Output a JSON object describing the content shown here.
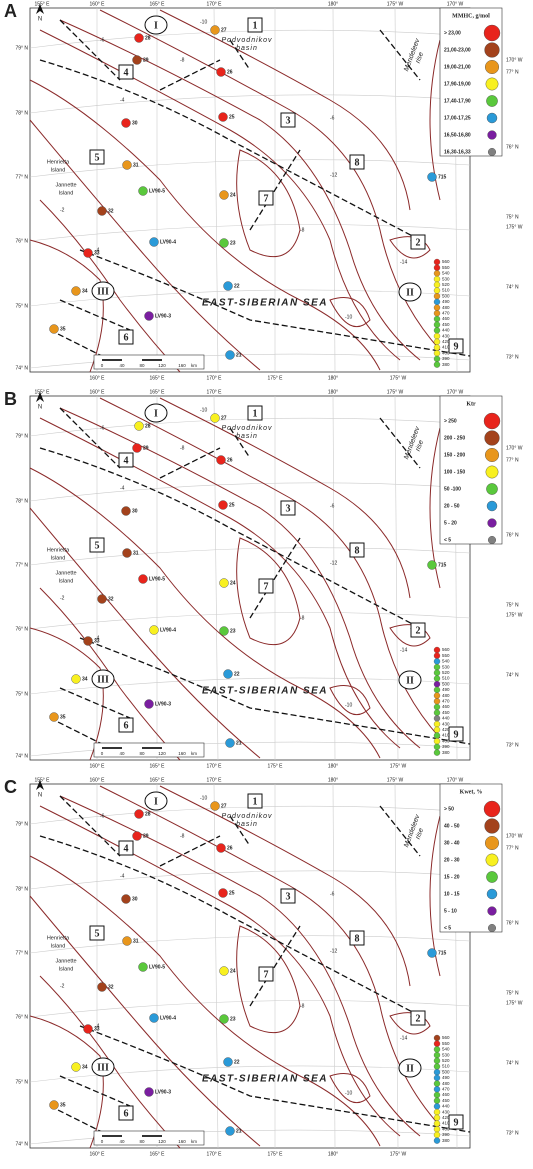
{
  "map": {
    "lat_left": [
      "79° N",
      "78° N",
      "77° N",
      "76° N",
      "75° N",
      "74° N"
    ],
    "lon_top": [
      "155° E",
      "160° E",
      "165° E",
      "170° E",
      "180°",
      "175° W",
      "170° W"
    ],
    "lon_bottom": [
      "160° E",
      "165° E",
      "170° E",
      "175° E",
      "180°",
      "175° W"
    ],
    "right": [
      "170° W",
      "77° N",
      "76° N",
      "75° N",
      "175° W",
      "74° N",
      "73° N"
    ],
    "zones": [
      "1",
      "2",
      "3",
      "4",
      "5",
      "6",
      "7",
      "8",
      "9"
    ],
    "roman": [
      "I",
      "II",
      "III"
    ],
    "basin": [
      "Podvodnikov",
      "basin"
    ],
    "rise": [
      "Mendeleev",
      "rise"
    ],
    "henrietta": [
      "Henrietta",
      "Island"
    ],
    "jannette": [
      "Jannette",
      "Island"
    ],
    "sea": "EAST-SIBERIAN SEA",
    "north": "N",
    "scale": [
      "0",
      "40",
      "80",
      "120",
      "160",
      "km"
    ],
    "contour_labels": [
      "-10",
      "-8",
      "-6",
      "-4",
      "-2",
      "-12",
      "-14",
      "-16",
      "-10",
      "-8",
      "-6",
      "-4"
    ],
    "stations": [
      "28",
      "27",
      "29",
      "26",
      "30",
      "25",
      "31",
      "LV90-5",
      "24",
      "32",
      "LV90-4",
      "23",
      "33",
      "34",
      "22",
      "LV90-3",
      "35",
      "21",
      "715"
    ],
    "depths": [
      560,
      550,
      540,
      530,
      520,
      510,
      500,
      490,
      480,
      470,
      460,
      450,
      440,
      430,
      420,
      410,
      400,
      390,
      380
    ]
  },
  "panels": [
    {
      "letter": "A",
      "legend_title": "MMHC, g/mol",
      "legend": [
        {
          "label": "> 23,00",
          "color": "#e8241c"
        },
        {
          "label": "21,00-23,00",
          "color": "#a3421c"
        },
        {
          "label": "19,00-21,00",
          "color": "#e8961c"
        },
        {
          "label": "17,90-19,00",
          "color": "#f8f020"
        },
        {
          "label": "17,40-17,90",
          "color": "#5ac83c"
        },
        {
          "label": "17,00-17,25",
          "color": "#2a9ad8"
        },
        {
          "label": "16,50-16,80",
          "color": "#7a1ea0"
        },
        {
          "label": "16,30-16,33",
          "color": "#808080"
        }
      ],
      "station_classes": [
        0,
        2,
        1,
        0,
        0,
        0,
        2,
        4,
        2,
        1,
        5,
        4,
        0,
        2,
        5,
        6,
        2,
        5,
        5
      ],
      "depth_classes": [
        0,
        0,
        2,
        3,
        3,
        3,
        2,
        5,
        2,
        2,
        4,
        4,
        4,
        3,
        3,
        3,
        3,
        4,
        4
      ]
    },
    {
      "letter": "B",
      "legend_title": "Ktr",
      "legend": [
        {
          "label": "> 250",
          "color": "#e8241c"
        },
        {
          "label": "200 - 250",
          "color": "#a3421c"
        },
        {
          "label": "150 - 200",
          "color": "#e8961c"
        },
        {
          "label": "100 - 150",
          "color": "#f8f020"
        },
        {
          "label": "50 -100",
          "color": "#5ac83c"
        },
        {
          "label": "20 - 50",
          "color": "#2a9ad8"
        },
        {
          "label": "5 - 20",
          "color": "#7a1ea0"
        },
        {
          "label": "< 5",
          "color": "#808080"
        }
      ],
      "station_classes": [
        3,
        3,
        0,
        0,
        1,
        0,
        1,
        0,
        3,
        1,
        3,
        4,
        1,
        3,
        5,
        6,
        2,
        5,
        4
      ],
      "depth_classes": [
        0,
        0,
        5,
        4,
        4,
        4,
        6,
        4,
        2,
        2,
        4,
        4,
        7,
        3,
        3,
        4,
        3,
        4,
        4
      ]
    },
    {
      "letter": "C",
      "legend_title": "Kwet, %",
      "legend": [
        {
          "label": "> 50",
          "color": "#e8241c"
        },
        {
          "label": "40 - 50",
          "color": "#a3421c"
        },
        {
          "label": "30 - 40",
          "color": "#e8961c"
        },
        {
          "label": "20 - 30",
          "color": "#f8f020"
        },
        {
          "label": "15 - 20",
          "color": "#5ac83c"
        },
        {
          "label": "10 - 15",
          "color": "#2a9ad8"
        },
        {
          "label": "5 - 10",
          "color": "#7a1ea0"
        },
        {
          "label": "< 5",
          "color": "#808080"
        }
      ],
      "station_classes": [
        0,
        2,
        0,
        0,
        1,
        0,
        2,
        4,
        3,
        1,
        5,
        4,
        0,
        3,
        5,
        6,
        2,
        5,
        5
      ],
      "depth_classes": [
        1,
        0,
        4,
        4,
        4,
        4,
        5,
        5,
        4,
        5,
        4,
        4,
        5,
        3,
        3,
        3,
        3,
        3,
        5
      ]
    }
  ]
}
